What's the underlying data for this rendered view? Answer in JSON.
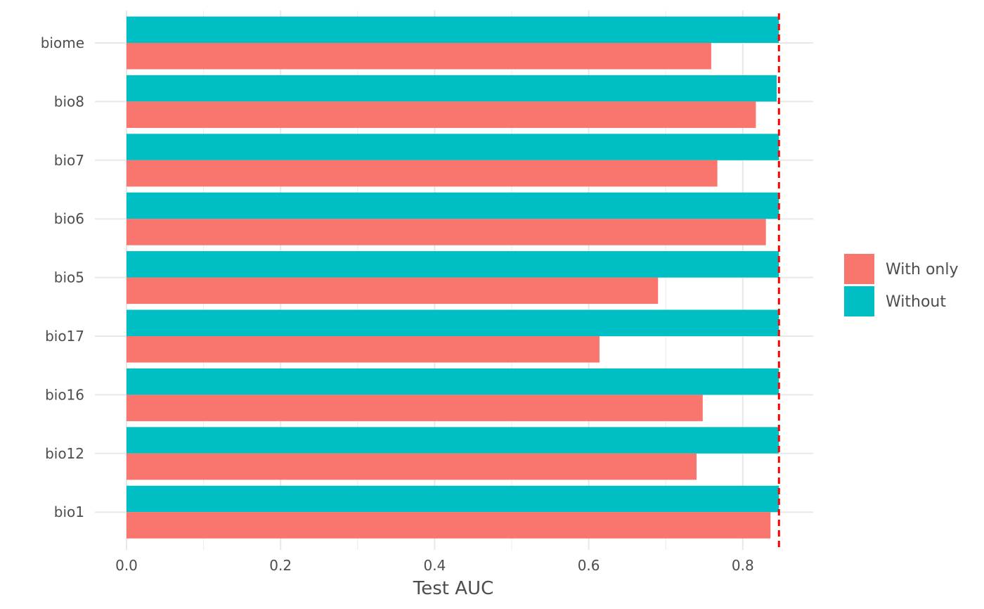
{
  "chart_data": {
    "type": "bar",
    "orientation": "horizontal",
    "categories": [
      "bio1",
      "bio12",
      "bio16",
      "bio17",
      "bio5",
      "bio6",
      "bio7",
      "bio8",
      "biome"
    ],
    "series": [
      {
        "name": "With only",
        "color": "#F8766D",
        "values": [
          0.836,
          0.74,
          0.748,
          0.614,
          0.69,
          0.83,
          0.767,
          0.817,
          0.759
        ]
      },
      {
        "name": "Without",
        "color": "#00BFC4",
        "values": [
          0.847,
          0.847,
          0.847,
          0.847,
          0.847,
          0.847,
          0.847,
          0.844,
          0.847
        ]
      }
    ],
    "reference_line": {
      "value": 0.847,
      "color": "#FF0000",
      "style": "dashed"
    },
    "x_ticks": [
      "0.0",
      "0.2",
      "0.4",
      "0.6",
      "0.8"
    ],
    "xlabel": "Test AUC",
    "ylabel": "",
    "xlim": [
      0,
      0.89
    ],
    "grid": true,
    "legend_position": "right"
  }
}
